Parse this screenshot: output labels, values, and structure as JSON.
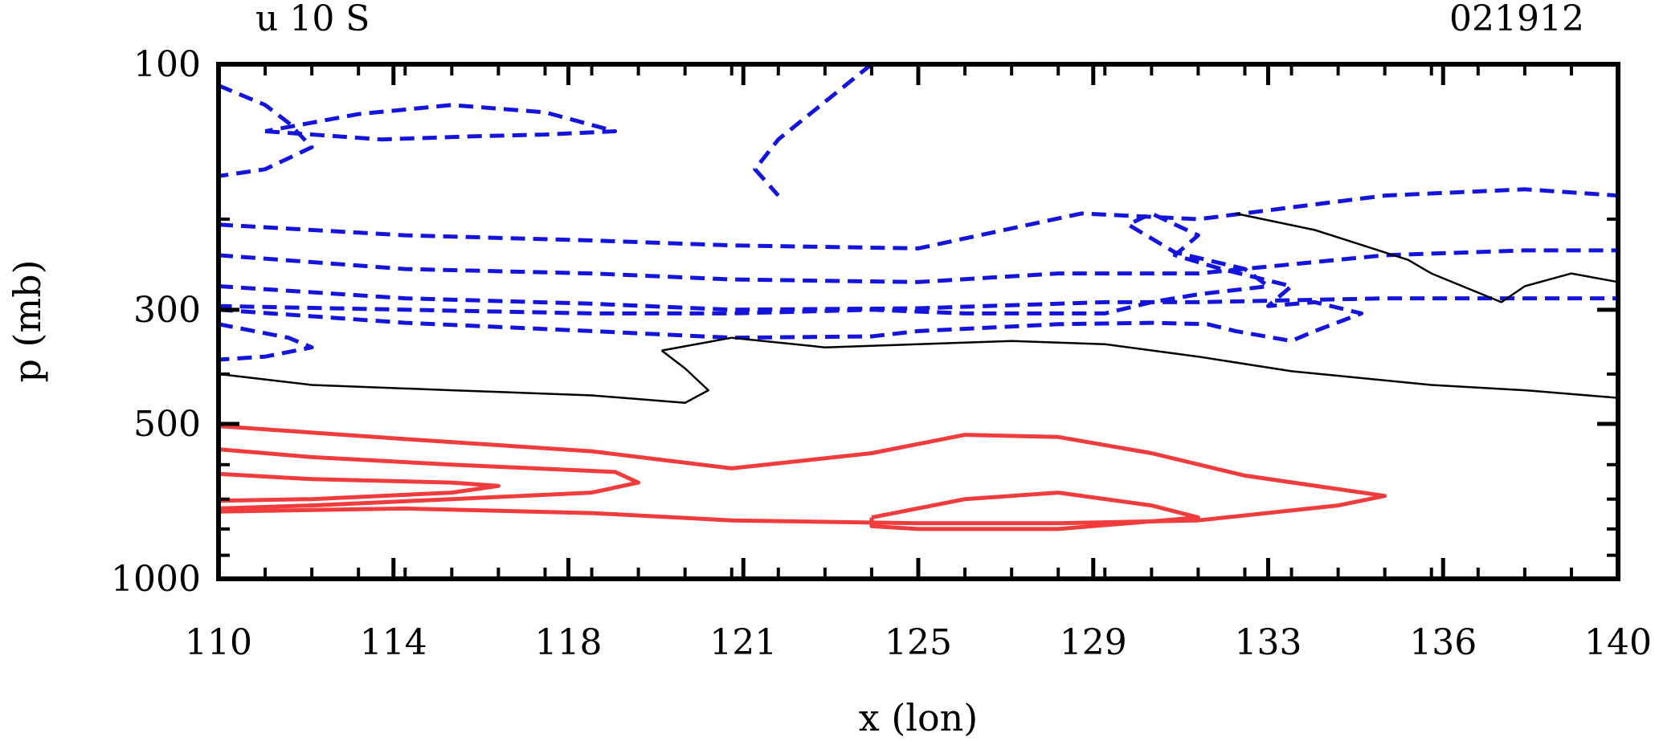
{
  "header": {
    "left_title": "u 10 S",
    "right_title": "021912"
  },
  "chart_data": {
    "type": "contour",
    "title": "u 10 S",
    "date_label": "021912",
    "xlabel": "x (lon)",
    "ylabel": "p (mb)",
    "xlim": [
      110,
      140
    ],
    "ylim": [
      1000,
      100
    ],
    "x_ticks": [
      "110",
      "114",
      "118",
      "121",
      "125",
      "129",
      "133",
      "136",
      "140"
    ],
    "y_ticks": [
      "100",
      "300",
      "500",
      "1000"
    ],
    "colors": {
      "negative": "#1414dc",
      "positive": "#f03c3c",
      "zero": "#000000"
    },
    "contours": [
      {
        "style": "dashed",
        "color": "negative",
        "points": [
          [
            111,
            135
          ],
          [
            113.5,
            140
          ],
          [
            115.5,
            138
          ],
          [
            117,
            137
          ],
          [
            118.5,
            135
          ],
          [
            117,
            124
          ],
          [
            115,
            120
          ],
          [
            113,
            125
          ],
          [
            111,
            135
          ]
        ]
      },
      {
        "style": "dashed",
        "color": "negative",
        "points": [
          [
            110,
            110
          ],
          [
            111,
            120
          ],
          [
            111.5,
            130
          ],
          [
            112,
            145
          ],
          [
            111,
            160
          ],
          [
            110,
            165
          ]
        ]
      },
      {
        "style": "dashed",
        "color": "negative",
        "points": [
          [
            110,
            205
          ],
          [
            114,
            215
          ],
          [
            118,
            220
          ],
          [
            121,
            225
          ],
          [
            125,
            228
          ],
          [
            128.5,
            195
          ],
          [
            131,
            200
          ],
          [
            135,
            180
          ],
          [
            138,
            175
          ],
          [
            140,
            180
          ]
        ]
      },
      {
        "style": "dashed",
        "color": "negative",
        "points": [
          [
            110,
            235
          ],
          [
            114,
            250
          ],
          [
            118,
            255
          ],
          [
            121,
            262
          ],
          [
            125,
            265
          ],
          [
            128,
            255
          ],
          [
            131,
            255
          ],
          [
            135,
            235
          ],
          [
            138,
            230
          ],
          [
            140,
            230
          ]
        ]
      },
      {
        "style": "dashed",
        "color": "negative",
        "points": [
          [
            110,
            270
          ],
          [
            114,
            285
          ],
          [
            118,
            292
          ],
          [
            121,
            300
          ],
          [
            125,
            298
          ],
          [
            129,
            290
          ],
          [
            131,
            290
          ],
          [
            135,
            285
          ],
          [
            140,
            285
          ]
        ]
      },
      {
        "style": "dashed",
        "color": "negative",
        "points": [
          [
            110,
            300
          ],
          [
            114,
            318
          ],
          [
            118,
            330
          ],
          [
            121,
            340
          ],
          [
            124,
            338
          ],
          [
            125,
            330
          ],
          [
            128,
            320
          ],
          [
            130,
            318
          ],
          [
            131.2,
            320
          ],
          [
            131.8,
            330
          ],
          [
            133,
            345
          ],
          [
            133.5,
            330
          ],
          [
            134.5,
            305
          ],
          [
            133.5,
            290
          ],
          [
            132.5,
            295
          ],
          [
            133,
            270
          ],
          [
            131.5,
            250
          ],
          [
            130.5,
            235
          ],
          [
            131,
            215
          ],
          [
            130,
            195
          ],
          [
            129.5,
            205
          ],
          [
            130.5,
            232
          ],
          [
            132,
            250
          ],
          [
            132.5,
            270
          ],
          [
            131,
            280
          ],
          [
            130,
            290
          ],
          [
            129,
            305
          ],
          [
            126,
            305
          ],
          [
            124,
            300
          ],
          [
            121,
            305
          ],
          [
            118,
            305
          ],
          [
            114,
            300
          ],
          [
            110,
            295
          ]
        ]
      },
      {
        "style": "dashed",
        "color": "negative",
        "points": [
          [
            110,
            320
          ],
          [
            111.5,
            340
          ],
          [
            112,
            355
          ],
          [
            111,
            370
          ],
          [
            110,
            375
          ]
        ]
      },
      {
        "style": "dashed",
        "color": "negative",
        "points": [
          [
            124,
            100
          ],
          [
            122,
            140
          ],
          [
            121.5,
            160
          ],
          [
            122,
            180
          ]
        ]
      },
      {
        "style": "solid",
        "color": "zero",
        "points": [
          [
            131.8,
            195
          ],
          [
            133.5,
            210
          ],
          [
            135.5,
            240
          ],
          [
            136,
            255
          ],
          [
            137.5,
            290
          ],
          [
            138,
            270
          ],
          [
            139,
            255
          ],
          [
            140,
            265
          ]
        ]
      },
      {
        "style": "solid",
        "color": "zero",
        "points": [
          [
            119.5,
            360
          ],
          [
            121,
            340
          ],
          [
            123,
            355
          ],
          [
            125,
            350
          ],
          [
            127,
            345
          ],
          [
            129,
            350
          ],
          [
            131,
            370
          ],
          [
            133,
            395
          ],
          [
            136,
            420
          ],
          [
            138,
            430
          ],
          [
            140,
            445
          ]
        ]
      },
      {
        "style": "solid",
        "color": "zero",
        "points": [
          [
            110,
            400
          ],
          [
            112,
            420
          ],
          [
            115,
            430
          ],
          [
            118,
            440
          ],
          [
            120,
            455
          ],
          [
            120.5,
            430
          ],
          [
            120,
            390
          ],
          [
            119.5,
            360
          ]
        ]
      },
      {
        "style": "solid",
        "color": "positive",
        "points": [
          [
            110,
            505
          ],
          [
            114,
            535
          ],
          [
            118,
            565
          ],
          [
            121,
            610
          ],
          [
            124,
            570
          ],
          [
            126,
            525
          ],
          [
            128,
            530
          ],
          [
            130,
            570
          ],
          [
            132,
            630
          ],
          [
            135,
            690
          ],
          [
            134,
            720
          ],
          [
            131,
            770
          ],
          [
            128,
            780
          ],
          [
            125,
            780
          ],
          [
            121,
            770
          ],
          [
            118,
            745
          ],
          [
            114,
            730
          ],
          [
            110,
            740
          ]
        ]
      },
      {
        "style": "solid",
        "color": "positive",
        "points": [
          [
            124,
            760
          ],
          [
            126,
            700
          ],
          [
            128,
            680
          ],
          [
            130,
            720
          ],
          [
            131,
            760
          ],
          [
            128,
            800
          ],
          [
            125,
            800
          ],
          [
            124,
            790
          ],
          [
            124,
            760
          ]
        ]
      },
      {
        "style": "solid",
        "color": "positive",
        "points": [
          [
            110,
            560
          ],
          [
            112,
            580
          ],
          [
            115,
            600
          ],
          [
            118.5,
            620
          ],
          [
            119,
            650
          ],
          [
            118,
            680
          ],
          [
            115,
            700
          ],
          [
            112,
            720
          ],
          [
            110,
            730
          ]
        ]
      },
      {
        "style": "solid",
        "color": "positive",
        "points": [
          [
            110,
            625
          ],
          [
            112,
            640
          ],
          [
            115,
            650
          ],
          [
            116,
            660
          ],
          [
            115,
            680
          ],
          [
            112,
            700
          ],
          [
            110,
            705
          ]
        ]
      }
    ],
    "grid": false,
    "legend": "none"
  }
}
